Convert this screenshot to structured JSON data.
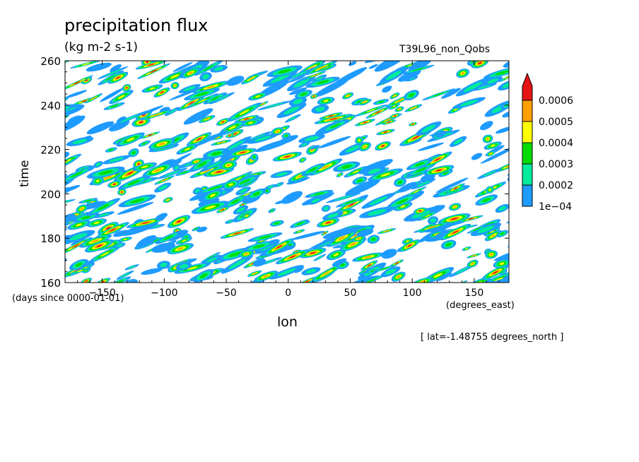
{
  "title": "precipitation flux",
  "units": "(kg m-2 s-1)",
  "run_name": "T39L96_non_Qobs",
  "footnote": "[ lat=-1.48755 degrees_north ]",
  "colors": {
    "levels": [
      "#1e9bff",
      "#00eb9b",
      "#00dc00",
      "#ffff00",
      "#ffa000",
      "#e61414"
    ]
  },
  "chart_data": {
    "type": "heatmap",
    "title": "precipitation flux",
    "subtitle": "(kg m-2 s-1)",
    "xlabel": "lon",
    "x_units": "(degrees_east)",
    "ylabel": "time",
    "y_units": "(days since 0000-01-01)",
    "xlim": [
      -180,
      178
    ],
    "ylim": [
      160,
      260
    ],
    "x_ticks": [
      -150,
      -100,
      -50,
      0,
      50,
      100,
      150
    ],
    "y_ticks": [
      160,
      180,
      200,
      220,
      240,
      260
    ],
    "colorbar": {
      "levels": [
        "1e-04",
        "0.0002",
        "0.0003",
        "0.0004",
        "0.0005",
        "0.0006"
      ],
      "colors": [
        "#1e9bff",
        "#00eb9b",
        "#00dc00",
        "#ffff00",
        "#ffa000",
        "#e61414"
      ],
      "extend": "max"
    },
    "grid": false
  }
}
